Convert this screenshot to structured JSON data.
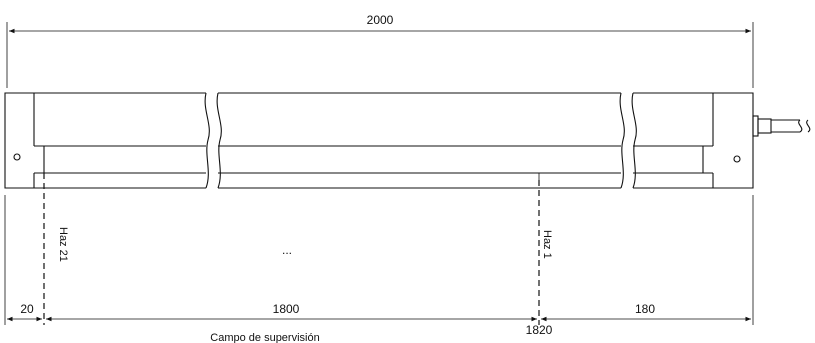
{
  "dimensions": {
    "total_length": "2000",
    "left_offset": "20",
    "field_span": "1800",
    "right_offset": "180",
    "beam1_position": "1820"
  },
  "labels": {
    "beam_last": "Haz 21",
    "beam_first": "Haz 1",
    "ellipsis": "...",
    "monitoring_field": "Campo de supervisión"
  },
  "colors": {
    "line": "#111111",
    "background": "#ffffff"
  }
}
